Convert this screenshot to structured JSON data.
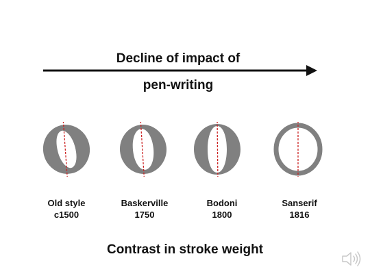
{
  "heading": {
    "line1": "Decline of impact of",
    "line2": "pen-writing"
  },
  "footer": "Contrast in stroke weight",
  "typefaces": [
    {
      "name": "Old style",
      "date": "c1500"
    },
    {
      "name": "Baskerville",
      "date": "1750"
    },
    {
      "name": "Bodoni",
      "date": "1800"
    },
    {
      "name": "Sanserif",
      "date": "1816"
    }
  ],
  "colors": {
    "letter": "#808080",
    "axis": "#cc2222",
    "text": "#111111",
    "arrow": "#111111"
  },
  "icons": {
    "speaker": "speaker-icon"
  }
}
